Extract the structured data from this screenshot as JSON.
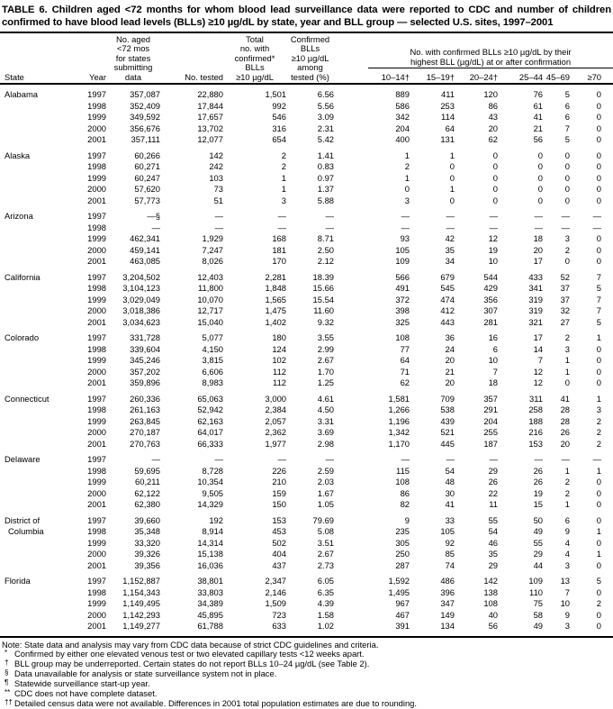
{
  "title_lines": [
    "TABLE 6. Children aged <72 months for whom blood lead surveillance data were reported to CDC and number of children",
    "confirmed to have blood lead levels (BLLs) ≥10 µg/dL by state, year and BLL group — selected U.S. sites, 1997–2001"
  ],
  "header": {
    "state": "State",
    "year": "Year",
    "aged_lines": [
      "No. aged",
      "<72 mos",
      "for states",
      "submitting",
      "data"
    ],
    "tested": "No. tested",
    "total_lines": [
      "Total",
      "no. with",
      "confirmed*",
      "BLLs",
      "≥10 µg/dL"
    ],
    "pct_lines": [
      "Confirmed",
      "BLLs",
      "≥10 µg/dL",
      "among",
      "tested (%)"
    ]
  },
  "group_header": {
    "line1": "No. with confirmed BLLs ≥10 µg/dL by their",
    "line2": "highest BLL (µg/dL) at or after confirmation",
    "sub": [
      "10–14†",
      "15–19†",
      "20–24†",
      "25–44",
      "45–69",
      "≥70"
    ]
  },
  "states": [
    {
      "name": "Alabama",
      "name2": "",
      "rows": [
        [
          "1997",
          "357,087",
          "22,880",
          "1,501",
          "6.56",
          "889",
          "411",
          "120",
          "76",
          "5",
          "0"
        ],
        [
          "1998",
          "352,409",
          "17,844",
          "992",
          "5.56",
          "586",
          "253",
          "86",
          "61",
          "6",
          "0"
        ],
        [
          "1999",
          "349,592",
          "17,657",
          "546",
          "3.09",
          "342",
          "114",
          "43",
          "41",
          "6",
          "0"
        ],
        [
          "2000",
          "356,676",
          "13,702",
          "316",
          "2.31",
          "204",
          "64",
          "20",
          "21",
          "7",
          "0"
        ],
        [
          "2001",
          "357,111",
          "12,077",
          "654",
          "5.42",
          "400",
          "131",
          "62",
          "56",
          "5",
          "0"
        ]
      ]
    },
    {
      "name": "Alaska",
      "name2": "",
      "rows": [
        [
          "1997",
          "60,266",
          "142",
          "2",
          "1.41",
          "1",
          "1",
          "0",
          "0",
          "0",
          "0"
        ],
        [
          "1998",
          "60,271",
          "242",
          "2",
          "0.83",
          "2",
          "0",
          "0",
          "0",
          "0",
          "0"
        ],
        [
          "1999",
          "60,247",
          "103",
          "1",
          "0.97",
          "1",
          "0",
          "0",
          "0",
          "0",
          "0"
        ],
        [
          "2000",
          "57,620",
          "73",
          "1",
          "1.37",
          "0",
          "1",
          "0",
          "0",
          "0",
          "0"
        ],
        [
          "2001",
          "57,773",
          "51",
          "3",
          "5.88",
          "3",
          "0",
          "0",
          "0",
          "0",
          "0"
        ]
      ]
    },
    {
      "name": "Arizona",
      "name2": "",
      "rows": [
        [
          "1997",
          "—§",
          "—",
          "—",
          "—",
          "—",
          "—",
          "—",
          "—",
          "—",
          "—"
        ],
        [
          "1998",
          "—",
          "—",
          "—",
          "—",
          "—",
          "—",
          "—",
          "—",
          "—",
          "—"
        ],
        [
          "1999",
          "462,341",
          "1,929",
          "168",
          "8.71",
          "93",
          "42",
          "12",
          "18",
          "3",
          "0"
        ],
        [
          "2000",
          "459,141",
          "7,247",
          "181",
          "2.50",
          "105",
          "35",
          "19",
          "20",
          "2",
          "0"
        ],
        [
          "2001",
          "463,085",
          "8,026",
          "170",
          "2.12",
          "109",
          "34",
          "10",
          "17",
          "0",
          "0"
        ]
      ]
    },
    {
      "name": "California",
      "name2": "",
      "rows": [
        [
          "1997",
          "3,204,502",
          "12,403",
          "2,281",
          "18.39",
          "566",
          "679",
          "544",
          "433",
          "52",
          "7"
        ],
        [
          "1998",
          "3,104,123",
          "11,800",
          "1,848",
          "15.66",
          "491",
          "545",
          "429",
          "341",
          "37",
          "5"
        ],
        [
          "1999",
          "3,029,049",
          "10,070",
          "1,565",
          "15.54",
          "372",
          "474",
          "356",
          "319",
          "37",
          "7"
        ],
        [
          "2000",
          "3,018,386",
          "12,717",
          "1,475",
          "11.60",
          "398",
          "412",
          "307",
          "319",
          "32",
          "7"
        ],
        [
          "2001",
          "3,034,623",
          "15,040",
          "1,402",
          "9.32",
          "325",
          "443",
          "281",
          "321",
          "27",
          "5"
        ]
      ]
    },
    {
      "name": "Colorado",
      "name2": "",
      "rows": [
        [
          "1997",
          "331,728",
          "5,077",
          "180",
          "3.55",
          "108",
          "36",
          "16",
          "17",
          "2",
          "1"
        ],
        [
          "1998",
          "339,604",
          "4,150",
          "124",
          "2.99",
          "77",
          "24",
          "6",
          "14",
          "3",
          "0"
        ],
        [
          "1999",
          "345,246",
          "3,815",
          "102",
          "2.67",
          "64",
          "20",
          "10",
          "7",
          "1",
          "0"
        ],
        [
          "2000",
          "357,202",
          "6,606",
          "112",
          "1.70",
          "71",
          "21",
          "7",
          "12",
          "1",
          "0"
        ],
        [
          "2001",
          "359,896",
          "8,983",
          "112",
          "1.25",
          "62",
          "20",
          "18",
          "12",
          "0",
          "0"
        ]
      ]
    },
    {
      "name": "Connecticut",
      "name2": "",
      "rows": [
        [
          "1997",
          "260,336",
          "65,063",
          "3,000",
          "4.61",
          "1,581",
          "709",
          "357",
          "311",
          "41",
          "1"
        ],
        [
          "1998",
          "261,163",
          "52,942",
          "2,384",
          "4.50",
          "1,266",
          "538",
          "291",
          "258",
          "28",
          "3"
        ],
        [
          "1999",
          "263,845",
          "62,163",
          "2,057",
          "3.31",
          "1,196",
          "439",
          "204",
          "188",
          "28",
          "2"
        ],
        [
          "2000",
          "270,187",
          "64,017",
          "2,362",
          "3.69",
          "1,342",
          "521",
          "255",
          "216",
          "26",
          "2"
        ],
        [
          "2001",
          "270,763",
          "66,333",
          "1,977",
          "2.98",
          "1,170",
          "445",
          "187",
          "153",
          "20",
          "2"
        ]
      ]
    },
    {
      "name": "Delaware",
      "name2": "",
      "rows": [
        [
          "1997",
          "—",
          "—",
          "—",
          "—",
          "—",
          "—",
          "—",
          "—",
          "—",
          "—"
        ],
        [
          "1998",
          "59,695",
          "8,728",
          "226",
          "2.59",
          "115",
          "54",
          "29",
          "26",
          "1",
          "1"
        ],
        [
          "1999",
          "60,211",
          "10,354",
          "210",
          "2.03",
          "108",
          "48",
          "26",
          "26",
          "2",
          "0"
        ],
        [
          "2000",
          "62,122",
          "9,505",
          "159",
          "1.67",
          "86",
          "30",
          "22",
          "19",
          "2",
          "0"
        ],
        [
          "2001",
          "62,380",
          "14,329",
          "150",
          "1.05",
          "82",
          "41",
          "11",
          "15",
          "1",
          "0"
        ]
      ]
    },
    {
      "name": "District of",
      "name2": "Columbia",
      "rows": [
        [
          "1997",
          "39,660",
          "192",
          "153",
          "79.69",
          "9",
          "33",
          "55",
          "50",
          "6",
          "0"
        ],
        [
          "1998",
          "35,348",
          "8,914",
          "453",
          "5.08",
          "235",
          "105",
          "54",
          "49",
          "9",
          "1"
        ],
        [
          "1999",
          "33,320",
          "14,314",
          "502",
          "3.51",
          "305",
          "92",
          "46",
          "55",
          "4",
          "0"
        ],
        [
          "2000",
          "39,326",
          "15,138",
          "404",
          "2.67",
          "250",
          "85",
          "35",
          "29",
          "4",
          "1"
        ],
        [
          "2001",
          "39,356",
          "16,036",
          "437",
          "2.73",
          "287",
          "74",
          "29",
          "44",
          "3",
          "0"
        ]
      ]
    },
    {
      "name": "Florida",
      "name2": "",
      "rows": [
        [
          "1997",
          "1,152,887",
          "38,801",
          "2,347",
          "6.05",
          "1,592",
          "486",
          "142",
          "109",
          "13",
          "5"
        ],
        [
          "1998",
          "1,154,343",
          "33,803",
          "2,146",
          "6.35",
          "1,495",
          "396",
          "138",
          "110",
          "7",
          "0"
        ],
        [
          "1999",
          "1,149,495",
          "34,389",
          "1,509",
          "4.39",
          "967",
          "347",
          "108",
          "75",
          "10",
          "2"
        ],
        [
          "2000",
          "1,142,293",
          "45,895",
          "723",
          "1.58",
          "467",
          "149",
          "40",
          "58",
          "9",
          "0"
        ],
        [
          "2001",
          "1,149,277",
          "61,788",
          "633",
          "1.02",
          "391",
          "134",
          "56",
          "49",
          "3",
          "0"
        ]
      ]
    }
  ],
  "footnotes": [
    {
      "marker": "",
      "text": "Note: State data and analysis may vary from CDC data because of strict CDC guidelines and criteria."
    },
    {
      "marker": "*",
      "text": "Confirmed by either one elevated venous test or two elevated capillary tests <12 weeks apart."
    },
    {
      "marker": "†",
      "text": "BLL group may be underreported. Certain states do not report BLLs 10–24 µg/dL (see Table 2)."
    },
    {
      "marker": "§",
      "text": "Data unavailable for analysis or state surveillance system not in place."
    },
    {
      "marker": "¶",
      "text": "Statewide surveillance start-up year."
    },
    {
      "marker": "**",
      "text": "CDC does not have complete dataset."
    },
    {
      "marker": "††",
      "text": "Detailed census data were not available. Differences in 2001 total population estimates are due to rounding."
    }
  ]
}
